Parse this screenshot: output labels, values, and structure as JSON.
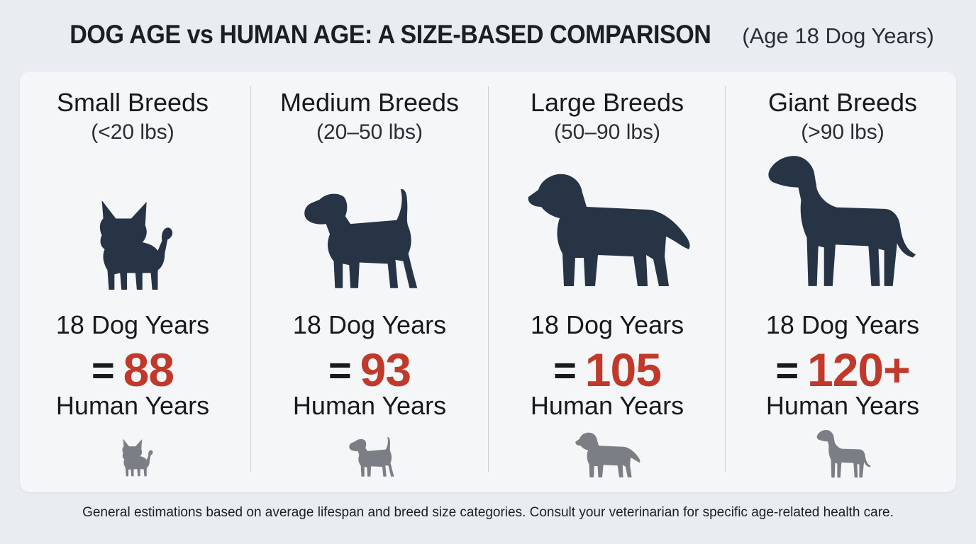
{
  "header": {
    "title": "DOG AGE vs HUMAN AGE: A SIZE-BASED COMPARISON",
    "subtitle": "(Age 18 Dog Years)"
  },
  "colors": {
    "accent": "#c0392b",
    "silhouette": "#263445",
    "small_icon": "#7b7f85"
  },
  "categories": [
    {
      "name": "Small Breeds",
      "weight": "(<20 lbs)",
      "dog_years": "18 Dog Years",
      "equals": "=",
      "human_value": "88",
      "human_label": "Human Years",
      "icon": "chihuahua-icon"
    },
    {
      "name": "Medium Breeds",
      "weight": "(20–50 lbs)",
      "dog_years": "18 Dog Years",
      "equals": "=",
      "human_value": "93",
      "human_label": "Human Years",
      "icon": "beagle-icon"
    },
    {
      "name": "Large Breeds",
      "weight": "(50–90 lbs)",
      "dog_years": "18 Dog Years",
      "equals": "=",
      "human_value": "105",
      "human_label": "Human Years",
      "icon": "golden-retriever-icon"
    },
    {
      "name": "Giant Breeds",
      "weight": "(>90 lbs)",
      "dog_years": "18 Dog Years",
      "equals": "=",
      "human_value": "120+",
      "human_label": "Human Years",
      "icon": "great-dane-icon"
    }
  ],
  "footnote": "General estimations based on average lifespan and breed size categories. Consult your veterinarian for specific age-related health care."
}
